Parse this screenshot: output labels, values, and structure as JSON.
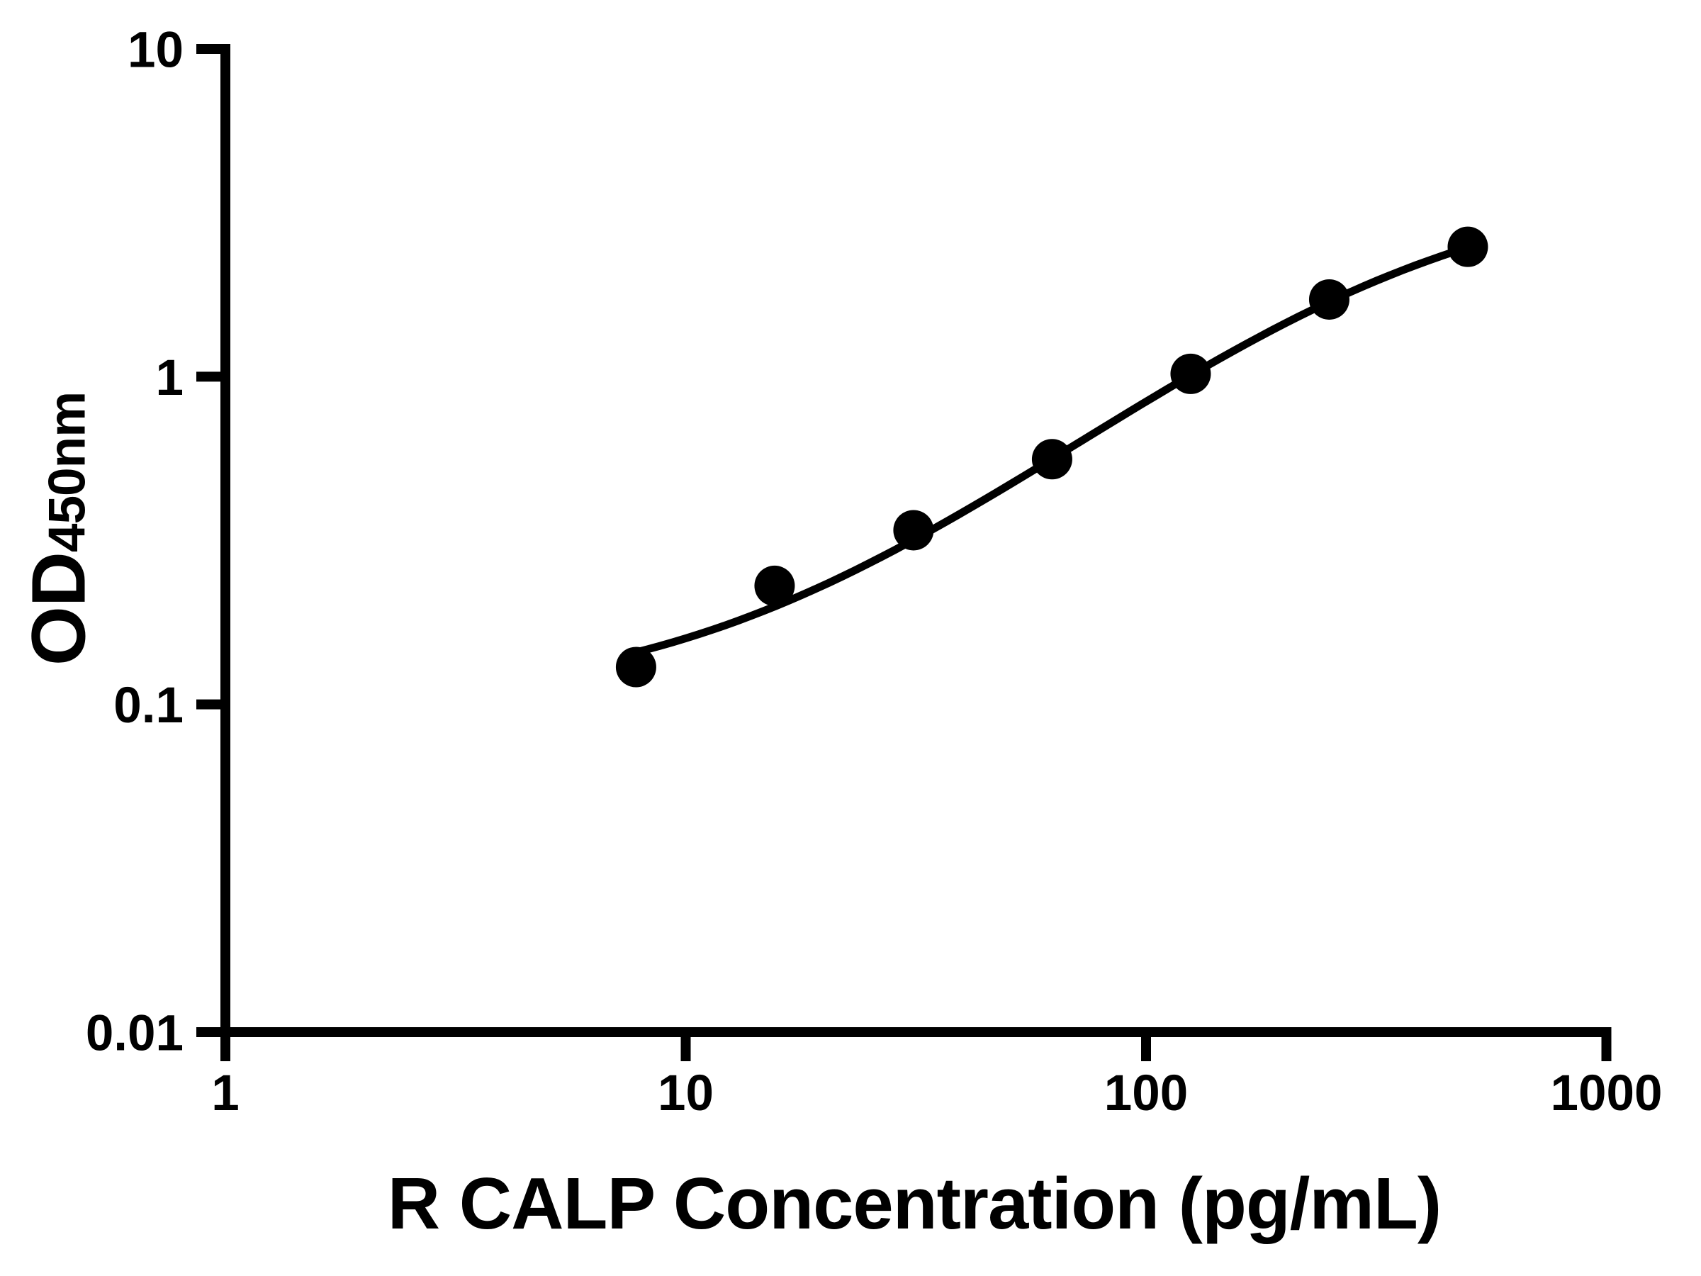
{
  "figure": {
    "x_axis_title": "R CALP Concentration (pg/mL)",
    "y_axis_title_main": "OD",
    "y_axis_title_sub": "450nm"
  },
  "chart_data": {
    "type": "scatter",
    "title": "",
    "xlabel": "R CALP Concentration (pg/mL)",
    "ylabel": "OD450nm",
    "x_scale": "log",
    "y_scale": "log",
    "xlim": [
      1,
      1000
    ],
    "ylim": [
      0.01,
      10
    ],
    "x_ticks": [
      1,
      10,
      100,
      1000
    ],
    "x_tick_labels": [
      "1",
      "10",
      "100",
      "1000"
    ],
    "y_ticks": [
      0.01,
      0.1,
      1,
      10
    ],
    "y_tick_labels": [
      "0.01",
      "0.1",
      "1",
      "10"
    ],
    "grid": false,
    "legend": false,
    "series": [
      {
        "marker": "filled-circle",
        "color": "#000000",
        "points": [
          {
            "x": 7.8,
            "y": 0.13
          },
          {
            "x": 15.6,
            "y": 0.23
          },
          {
            "x": 31.25,
            "y": 0.34
          },
          {
            "x": 62.5,
            "y": 0.56
          },
          {
            "x": 125,
            "y": 1.02
          },
          {
            "x": 250,
            "y": 1.72
          },
          {
            "x": 500,
            "y": 2.49
          }
        ]
      }
    ],
    "fit_curve": {
      "model": "4PL",
      "bottom": 0.1,
      "top": 4.0,
      "ec50": 342,
      "hill": 1.182,
      "x_start": 7.7,
      "x_end": 500,
      "color": "#000000"
    },
    "colors": {
      "foreground": "#000000",
      "background": "#ffffff"
    }
  }
}
